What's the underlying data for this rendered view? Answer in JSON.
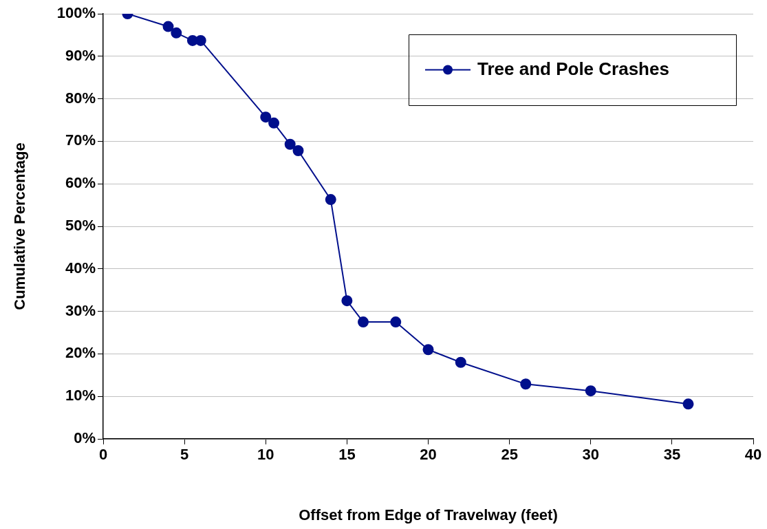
{
  "chart_data": {
    "type": "line",
    "xlabel": "Offset from Edge of Travelway (feet)",
    "ylabel": "Cumulative Percentage",
    "x": [
      1.5,
      4,
      4.5,
      5.5,
      6,
      10,
      10.5,
      11.5,
      12,
      14,
      15,
      16,
      18,
      20,
      22,
      26,
      30,
      36
    ],
    "series": [
      {
        "name": "Tree and Pole Crashes",
        "color": "#000f8c",
        "values": [
          100,
          97,
          95.5,
          93.7,
          93.7,
          75.7,
          74.3,
          69.3,
          67.8,
          56.3,
          32.5,
          27.5,
          27.5,
          21,
          18,
          12.9,
          11.3,
          8.2
        ]
      }
    ],
    "xlim": [
      0,
      40
    ],
    "xticks": [
      0,
      5,
      10,
      15,
      20,
      25,
      30,
      35,
      40
    ],
    "ylim": [
      0,
      100
    ],
    "yticks": [
      {
        "value": 0,
        "label": "0%"
      },
      {
        "value": 10,
        "label": "10%"
      },
      {
        "value": 20,
        "label": "20%"
      },
      {
        "value": 30,
        "label": "30%"
      },
      {
        "value": 40,
        "label": "40%"
      },
      {
        "value": 50,
        "label": "50%"
      },
      {
        "value": 60,
        "label": "60%"
      },
      {
        "value": 70,
        "label": "70%"
      },
      {
        "value": 80,
        "label": "80%"
      },
      {
        "value": 90,
        "label": "90%"
      },
      {
        "value": 100,
        "label": "100%"
      }
    ],
    "grid": "y",
    "legend": "top right",
    "marker": "circle",
    "line_style": "solid"
  }
}
